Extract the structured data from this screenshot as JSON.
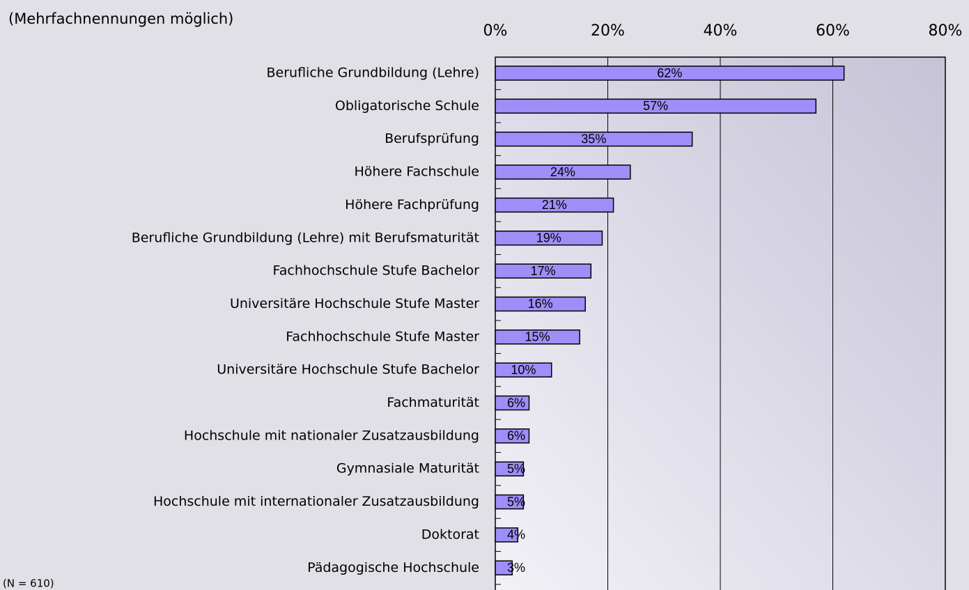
{
  "chart_data": {
    "type": "bar",
    "orientation": "horizontal",
    "subtitle": "(Mehrfachnennungen möglich)",
    "note": "(N = 610)",
    "categories": [
      "Berufliche Grundbildung (Lehre)",
      "Obligatorische Schule",
      "Berufsprüfung",
      "Höhere Fachschule",
      "Höhere Fachprüfung",
      "Berufliche Grundbildung (Lehre) mit Berufsmaturität",
      "Fachhochschule Stufe Bachelor",
      "Universitäre Hochschule Stufe Master",
      "Fachhochschule Stufe Master",
      "Universitäre Hochschule Stufe Bachelor",
      "Fachmaturität",
      "Hochschule mit nationaler Zusatzausbildung",
      "Gymnasiale Maturität",
      "Hochschule mit internationaler Zusatzausbildung",
      "Doktorat",
      "Pädagogische Hochschule"
    ],
    "values": [
      62,
      57,
      35,
      24,
      21,
      19,
      17,
      16,
      15,
      10,
      6,
      6,
      5,
      5,
      4,
      3
    ],
    "value_labels": [
      "62%",
      "57%",
      "35%",
      "24%",
      "21%",
      "19%",
      "17%",
      "16%",
      "15%",
      "10%",
      "6%",
      "6%",
      "5%",
      "5%",
      "4%",
      "3%"
    ],
    "color": "#9d8ff7",
    "xlim": [
      0,
      80
    ],
    "xticks": [
      {
        "value": 0,
        "label": "0%"
      },
      {
        "value": 20,
        "label": "20%"
      },
      {
        "value": 40,
        "label": "40%"
      },
      {
        "value": 60,
        "label": "60%"
      },
      {
        "value": 80,
        "label": "80%"
      }
    ],
    "grid": true
  }
}
